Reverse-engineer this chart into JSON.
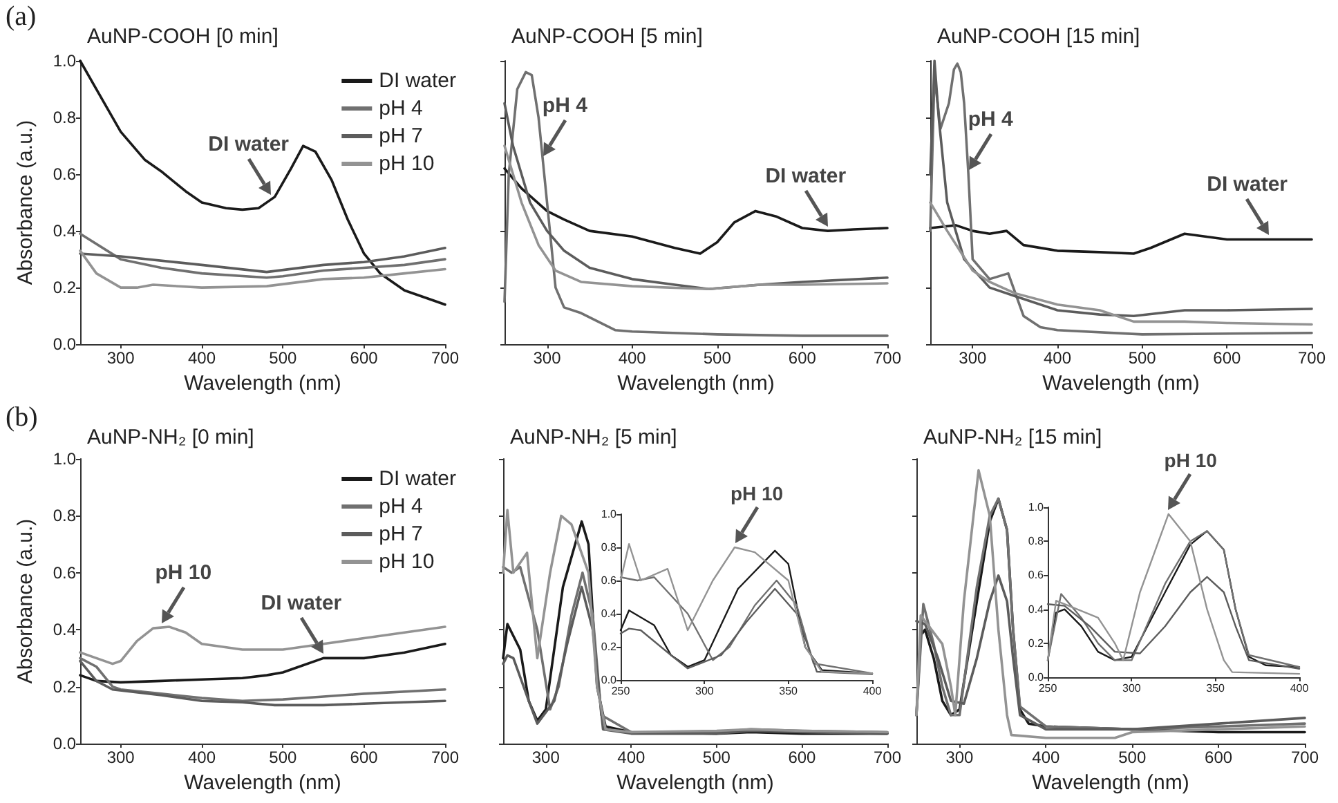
{
  "chart_data": [
    {
      "type": "line",
      "title": "AuNP-COOH [0 min]",
      "xlabel": "Wavelength (nm)",
      "ylabel": "Absorbance (a.u.)",
      "xlim": [
        250,
        700
      ],
      "ylim": [
        0,
        1
      ],
      "xticks": [
        300,
        400,
        500,
        600,
        700
      ],
      "yticks": [
        {
          "value": 0,
          "label": "0.0"
        },
        {
          "value": 0.2,
          "label": "0.2"
        },
        {
          "value": 0.4,
          "label": "0.4"
        },
        {
          "value": 0.6,
          "label": "0.6"
        },
        {
          "value": 0.8,
          "label": "0.8"
        },
        {
          "value": 1,
          "label": "1.0"
        }
      ],
      "legend": "top right",
      "annotations": [
        "(a)",
        {
          "text": "DI water",
          "x": 485,
          "y": 0.51
        }
      ],
      "series": [
        {
          "name": "DI water",
          "color": "#1a1a1a",
          "x": [
            250,
            270,
            300,
            330,
            350,
            380,
            400,
            430,
            450,
            470,
            490,
            510,
            525,
            540,
            560,
            580,
            600,
            620,
            650,
            680,
            700
          ],
          "values": [
            1.0,
            0.9,
            0.75,
            0.65,
            0.61,
            0.54,
            0.5,
            0.48,
            0.475,
            0.48,
            0.52,
            0.62,
            0.7,
            0.68,
            0.58,
            0.44,
            0.32,
            0.25,
            0.19,
            0.16,
            0.14
          ]
        },
        {
          "name": "pH 4",
          "color": "#707070",
          "x": [
            250,
            300,
            350,
            400,
            480,
            500,
            550,
            600,
            650,
            700
          ],
          "values": [
            0.39,
            0.3,
            0.27,
            0.25,
            0.235,
            0.24,
            0.26,
            0.27,
            0.28,
            0.3
          ]
        },
        {
          "name": "pH 7",
          "color": "#5c5c5c",
          "x": [
            250,
            300,
            400,
            480,
            550,
            600,
            650,
            700
          ],
          "values": [
            0.32,
            0.31,
            0.28,
            0.255,
            0.28,
            0.29,
            0.31,
            0.34
          ]
        },
        {
          "name": "pH 10",
          "color": "#939393",
          "x": [
            250,
            270,
            300,
            320,
            340,
            400,
            480,
            550,
            600,
            650,
            700
          ],
          "values": [
            0.33,
            0.25,
            0.2,
            0.2,
            0.21,
            0.2,
            0.205,
            0.23,
            0.235,
            0.25,
            0.265
          ]
        }
      ]
    },
    {
      "type": "line",
      "title": "AuNP-COOH [5 min]",
      "xlabel": "Wavelength (nm)",
      "xlim": [
        250,
        700
      ],
      "ylim": [
        0,
        1
      ],
      "xticks": [
        300,
        400,
        500,
        600,
        700
      ],
      "yticks": [
        0,
        0.2,
        0.4,
        0.6,
        0.8,
        1
      ],
      "tick_labels": "x",
      "annotations": [
        {
          "text": "pH 4",
          "x": 295,
          "y": 0.65
        },
        {
          "text": "DI water",
          "x": 630,
          "y": 0.4
        }
      ],
      "series": [
        {
          "color": "#1a1a1a",
          "x": [
            250,
            270,
            300,
            320,
            350,
            400,
            450,
            480,
            500,
            520,
            545,
            570,
            600,
            630,
            660,
            700
          ],
          "values": [
            0.62,
            0.55,
            0.47,
            0.44,
            0.4,
            0.38,
            0.34,
            0.32,
            0.36,
            0.43,
            0.47,
            0.45,
            0.41,
            0.4,
            0.405,
            0.41
          ]
        },
        {
          "color": "#707070",
          "x": [
            250,
            255,
            265,
            275,
            282,
            290,
            300,
            310,
            320,
            340,
            360,
            380,
            400,
            500,
            600,
            700
          ],
          "values": [
            0.15,
            0.6,
            0.9,
            0.96,
            0.95,
            0.8,
            0.5,
            0.2,
            0.13,
            0.11,
            0.08,
            0.05,
            0.045,
            0.035,
            0.03,
            0.03
          ]
        },
        {
          "color": "#5c5c5c",
          "x": [
            250,
            260,
            280,
            300,
            320,
            350,
            400,
            450,
            490,
            550,
            600,
            700
          ],
          "values": [
            0.85,
            0.7,
            0.5,
            0.4,
            0.33,
            0.27,
            0.23,
            0.21,
            0.195,
            0.21,
            0.22,
            0.235
          ]
        },
        {
          "color": "#939393",
          "x": [
            250,
            270,
            290,
            310,
            340,
            400,
            490,
            550,
            600,
            700
          ],
          "values": [
            0.7,
            0.5,
            0.35,
            0.26,
            0.22,
            0.205,
            0.195,
            0.21,
            0.21,
            0.215
          ]
        }
      ]
    },
    {
      "type": "line",
      "title": "AuNP-COOH [15 min]",
      "xlabel": "Wavelength (nm)",
      "xlim": [
        250,
        700
      ],
      "ylim": [
        0,
        1
      ],
      "xticks": [
        300,
        400,
        500,
        600,
        700
      ],
      "yticks": [
        0,
        0.2,
        0.4,
        0.6,
        0.8,
        1
      ],
      "tick_labels": "x",
      "annotations": [
        {
          "text": "pH 4",
          "x": 295,
          "y": 0.6
        },
        {
          "text": "DI water",
          "x": 650,
          "y": 0.37
        }
      ],
      "series": [
        {
          "color": "#1a1a1a",
          "x": [
            250,
            280,
            300,
            320,
            340,
            360,
            400,
            450,
            490,
            510,
            550,
            600,
            650,
            700
          ],
          "values": [
            0.41,
            0.42,
            0.4,
            0.39,
            0.4,
            0.35,
            0.33,
            0.325,
            0.32,
            0.34,
            0.39,
            0.37,
            0.37,
            0.37
          ]
        },
        {
          "color": "#707070",
          "x": [
            250,
            255,
            262,
            272,
            278,
            282,
            286,
            290,
            295,
            300,
            320,
            342,
            360,
            380,
            400,
            500,
            700
          ],
          "values": [
            0.4,
            0.95,
            0.76,
            0.85,
            0.97,
            0.99,
            0.96,
            0.85,
            0.6,
            0.3,
            0.23,
            0.25,
            0.1,
            0.06,
            0.05,
            0.035,
            0.04
          ]
        },
        {
          "color": "#5c5c5c",
          "x": [
            250,
            255,
            260,
            270,
            290,
            320,
            350,
            400,
            450,
            490,
            550,
            600,
            700
          ],
          "values": [
            0.6,
            1.0,
            0.8,
            0.5,
            0.3,
            0.2,
            0.17,
            0.12,
            0.105,
            0.1,
            0.12,
            0.12,
            0.125
          ]
        },
        {
          "color": "#939393",
          "x": [
            250,
            270,
            300,
            320,
            350,
            400,
            450,
            490,
            550,
            600,
            700
          ],
          "values": [
            0.5,
            0.4,
            0.26,
            0.22,
            0.18,
            0.14,
            0.12,
            0.08,
            0.08,
            0.075,
            0.07
          ]
        }
      ]
    },
    {
      "type": "line",
      "title": "AuNP-NH₂ [0 min]",
      "xlabel": "Wavelength (nm)",
      "ylabel": "Absorbance (a.u.)",
      "xlim": [
        250,
        700
      ],
      "ylim": [
        0,
        1
      ],
      "xticks": [
        300,
        400,
        500,
        600,
        700
      ],
      "yticks": [
        {
          "value": 0,
          "label": "0.0"
        },
        {
          "value": 0.2,
          "label": "0.2"
        },
        {
          "value": 0.4,
          "label": "0.4"
        },
        {
          "value": 0.6,
          "label": "0.6"
        },
        {
          "value": 0.8,
          "label": "0.8"
        },
        {
          "value": 1,
          "label": "1.0"
        }
      ],
      "legend": "top right",
      "annotations": [
        "(b)",
        {
          "text": "pH 10",
          "x": 350,
          "y": 0.41
        },
        {
          "text": "DI water",
          "x": 550,
          "y": 0.3
        }
      ],
      "series": [
        {
          "name": "DI water",
          "color": "#1a1a1a",
          "x": [
            250,
            270,
            300,
            350,
            400,
            450,
            480,
            500,
            520,
            550,
            600,
            650,
            700
          ],
          "values": [
            0.24,
            0.22,
            0.215,
            0.22,
            0.225,
            0.23,
            0.24,
            0.25,
            0.27,
            0.3,
            0.3,
            0.32,
            0.35
          ]
        },
        {
          "name": "pH 4",
          "color": "#707070",
          "x": [
            250,
            270,
            290,
            300,
            350,
            400,
            450,
            500,
            550,
            600,
            700
          ],
          "values": [
            0.3,
            0.27,
            0.2,
            0.19,
            0.175,
            0.16,
            0.15,
            0.155,
            0.165,
            0.175,
            0.19
          ]
        },
        {
          "name": "pH 7",
          "color": "#5c5c5c",
          "x": [
            250,
            270,
            290,
            350,
            400,
            450,
            490,
            550,
            600,
            700
          ],
          "values": [
            0.29,
            0.22,
            0.19,
            0.17,
            0.15,
            0.145,
            0.135,
            0.135,
            0.14,
            0.15
          ]
        },
        {
          "name": "pH 10",
          "color": "#939393",
          "x": [
            250,
            270,
            290,
            300,
            320,
            340,
            360,
            380,
            400,
            450,
            500,
            550,
            600,
            650,
            700
          ],
          "values": [
            0.32,
            0.3,
            0.28,
            0.29,
            0.36,
            0.405,
            0.41,
            0.39,
            0.35,
            0.33,
            0.33,
            0.35,
            0.37,
            0.39,
            0.41
          ]
        }
      ]
    },
    {
      "type": "line",
      "title": "AuNP-NH₂ [5 min]",
      "xlabel": "Wavelength (nm)",
      "xlim": [
        250,
        700
      ],
      "ylim": [
        0,
        1
      ],
      "xticks": [
        300,
        400,
        500,
        600,
        700
      ],
      "yticks": [
        0,
        0.2,
        0.4,
        0.6,
        0.8,
        1
      ],
      "tick_labels": "x",
      "series": [
        {
          "color": "#1a1a1a",
          "x": [
            250,
            255,
            270,
            280,
            290,
            300,
            320,
            342,
            350,
            360,
            370,
            400,
            500,
            540,
            600,
            700
          ],
          "values": [
            0.3,
            0.42,
            0.33,
            0.15,
            0.08,
            0.12,
            0.55,
            0.78,
            0.7,
            0.2,
            0.06,
            0.04,
            0.035,
            0.04,
            0.035,
            0.035
          ]
        },
        {
          "color": "#707070",
          "x": [
            250,
            260,
            270,
            290,
            305,
            315,
            330,
            343,
            355,
            365,
            400,
            500,
            540,
            600,
            700
          ],
          "values": [
            0.62,
            0.6,
            0.62,
            0.4,
            0.12,
            0.2,
            0.45,
            0.6,
            0.45,
            0.1,
            0.04,
            0.04,
            0.05,
            0.045,
            0.04
          ]
        },
        {
          "color": "#5c5c5c",
          "x": [
            250,
            255,
            262,
            280,
            290,
            310,
            325,
            342,
            355,
            367,
            400,
            500,
            540,
            600,
            700
          ],
          "values": [
            0.28,
            0.31,
            0.3,
            0.15,
            0.07,
            0.15,
            0.35,
            0.55,
            0.4,
            0.05,
            0.035,
            0.035,
            0.045,
            0.04,
            0.035
          ]
        },
        {
          "color": "#939393",
          "x": [
            250,
            255,
            262,
            278,
            290,
            305,
            318,
            330,
            350,
            360,
            370,
            400,
            500,
            540,
            600,
            700
          ],
          "values": [
            0.6,
            0.82,
            0.6,
            0.67,
            0.3,
            0.6,
            0.8,
            0.77,
            0.6,
            0.2,
            0.05,
            0.04,
            0.045,
            0.05,
            0.045,
            0.04
          ]
        }
      ]
    },
    {
      "type": "line",
      "xlim": [
        250,
        400
      ],
      "ylim": [
        0,
        1
      ],
      "xticks": [
        250,
        300,
        350,
        400
      ],
      "yticks": [
        {
          "value": 0,
          "label": "0.0"
        },
        {
          "value": 0.2,
          "label": "0.2"
        },
        {
          "value": 0.4,
          "label": "0.4"
        },
        {
          "value": 0.6,
          "label": "0.6"
        },
        {
          "value": 0.8,
          "label": "0.8"
        },
        {
          "value": 1,
          "label": "1.0"
        }
      ],
      "annotations": [
        {
          "text": "pH 10",
          "x": 318,
          "y": 0.8
        }
      ],
      "series": [
        {
          "color": "#1a1a1a",
          "x": [
            250,
            255,
            270,
            280,
            290,
            300,
            320,
            342,
            350,
            360,
            370,
            400
          ],
          "values": [
            0.3,
            0.42,
            0.33,
            0.15,
            0.08,
            0.12,
            0.55,
            0.78,
            0.7,
            0.2,
            0.06,
            0.04
          ]
        },
        {
          "color": "#707070",
          "x": [
            250,
            260,
            270,
            290,
            305,
            315,
            330,
            343,
            355,
            365,
            400
          ],
          "values": [
            0.62,
            0.6,
            0.62,
            0.4,
            0.12,
            0.2,
            0.45,
            0.6,
            0.45,
            0.1,
            0.04
          ]
        },
        {
          "color": "#5c5c5c",
          "x": [
            250,
            255,
            262,
            280,
            290,
            310,
            325,
            342,
            355,
            367,
            400
          ],
          "values": [
            0.28,
            0.31,
            0.3,
            0.15,
            0.07,
            0.15,
            0.35,
            0.55,
            0.4,
            0.05,
            0.035
          ]
        },
        {
          "color": "#939393",
          "x": [
            250,
            255,
            262,
            278,
            290,
            305,
            318,
            330,
            350,
            360,
            370,
            400
          ],
          "values": [
            0.6,
            0.82,
            0.6,
            0.67,
            0.3,
            0.6,
            0.8,
            0.77,
            0.6,
            0.2,
            0.05,
            0.04
          ]
        }
      ]
    },
    {
      "type": "line",
      "title": "AuNP-NH₂ [15 min]",
      "xlabel": "Wavelength (nm)",
      "xlim": [
        250,
        700
      ],
      "ylim": [
        0,
        1
      ],
      "xticks": [
        300,
        400,
        500,
        600,
        700
      ],
      "yticks": [
        0,
        0.2,
        0.4,
        0.6,
        0.8,
        1
      ],
      "tick_labels": "x",
      "series": [
        {
          "color": "#1a1a1a",
          "x": [
            250,
            255,
            260,
            270,
            280,
            290,
            300,
            320,
            335,
            345,
            355,
            362,
            370,
            380,
            400,
            500,
            600,
            700
          ],
          "values": [
            0.1,
            0.38,
            0.4,
            0.3,
            0.15,
            0.1,
            0.12,
            0.5,
            0.78,
            0.86,
            0.75,
            0.4,
            0.12,
            0.07,
            0.06,
            0.05,
            0.04,
            0.04
          ]
        },
        {
          "color": "#707070",
          "x": [
            250,
            258,
            270,
            280,
            290,
            300,
            320,
            335,
            345,
            355,
            362,
            370,
            400,
            500,
            600,
            700
          ],
          "values": [
            0.1,
            0.49,
            0.35,
            0.2,
            0.1,
            0.1,
            0.55,
            0.8,
            0.86,
            0.75,
            0.4,
            0.13,
            0.06,
            0.05,
            0.06,
            0.07
          ]
        },
        {
          "color": "#5c5c5c",
          "x": [
            250,
            260,
            275,
            290,
            305,
            320,
            335,
            345,
            355,
            362,
            370,
            400,
            500,
            600,
            700
          ],
          "values": [
            0.43,
            0.42,
            0.3,
            0.15,
            0.14,
            0.3,
            0.5,
            0.59,
            0.5,
            0.3,
            0.1,
            0.05,
            0.05,
            0.07,
            0.09
          ]
        },
        {
          "color": "#939393",
          "x": [
            250,
            255,
            260,
            280,
            290,
            295,
            305,
            322,
            335,
            345,
            355,
            360,
            400,
            480,
            500,
            600,
            700
          ],
          "values": [
            0.1,
            0.45,
            0.43,
            0.35,
            0.2,
            0.1,
            0.5,
            0.96,
            0.8,
            0.4,
            0.1,
            0.03,
            0.02,
            0.02,
            0.04,
            0.05,
            0.06
          ]
        }
      ]
    },
    {
      "type": "line",
      "xlim": [
        250,
        400
      ],
      "ylim": [
        0,
        1
      ],
      "xticks": [
        250,
        300,
        350,
        400
      ],
      "yticks": [
        {
          "value": 0,
          "label": "0.0"
        },
        {
          "value": 0.2,
          "label": "0.2"
        },
        {
          "value": 0.4,
          "label": "0.4"
        },
        {
          "value": 0.6,
          "label": "0.6"
        },
        {
          "value": 0.8,
          "label": "0.8"
        },
        {
          "value": 1,
          "label": "1.0"
        }
      ],
      "annotations": [
        {
          "text": "pH 10",
          "x": 322,
          "y": 0.96
        }
      ],
      "series": [
        {
          "color": "#1a1a1a",
          "x": [
            250,
            255,
            260,
            270,
            280,
            290,
            300,
            320,
            335,
            345,
            355,
            362,
            370,
            380,
            400
          ],
          "values": [
            0.1,
            0.38,
            0.4,
            0.3,
            0.15,
            0.1,
            0.12,
            0.5,
            0.78,
            0.86,
            0.75,
            0.4,
            0.12,
            0.07,
            0.06
          ]
        },
        {
          "color": "#707070",
          "x": [
            250,
            258,
            270,
            280,
            290,
            300,
            320,
            335,
            345,
            355,
            362,
            370,
            400
          ],
          "values": [
            0.1,
            0.49,
            0.35,
            0.2,
            0.1,
            0.1,
            0.55,
            0.8,
            0.86,
            0.75,
            0.4,
            0.13,
            0.06
          ]
        },
        {
          "color": "#5c5c5c",
          "x": [
            250,
            260,
            275,
            290,
            305,
            320,
            335,
            345,
            355,
            362,
            370,
            400
          ],
          "values": [
            0.43,
            0.42,
            0.3,
            0.15,
            0.14,
            0.3,
            0.5,
            0.59,
            0.5,
            0.3,
            0.1,
            0.05
          ]
        },
        {
          "color": "#939393",
          "x": [
            250,
            255,
            260,
            280,
            290,
            295,
            305,
            322,
            335,
            345,
            355,
            360,
            400
          ],
          "values": [
            0.1,
            0.45,
            0.43,
            0.35,
            0.2,
            0.1,
            0.5,
            0.96,
            0.8,
            0.4,
            0.1,
            0.03,
            0.02
          ]
        }
      ]
    }
  ]
}
